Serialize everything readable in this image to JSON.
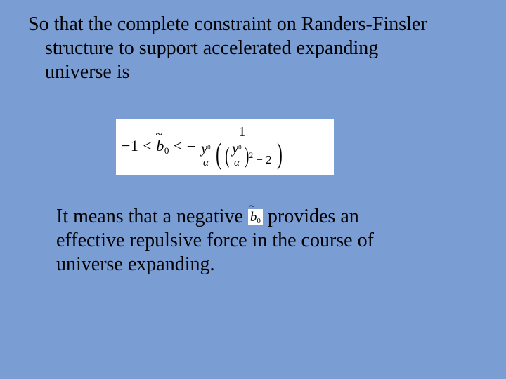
{
  "background_color": "#7a9dd3",
  "text_color": "#000000",
  "formula_bg": "#ffffff",
  "font_family": "Times New Roman",
  "body_fontsize_pt": 21,
  "para1": {
    "line1": "So that the complete constraint on Randers-Finsler",
    "line2": "structure to support accelerated expanding",
    "line3": "universe is"
  },
  "formula": {
    "lower_bound": "−1",
    "lt1": "<",
    "symbol_base": "b",
    "symbol_tilde": "~",
    "symbol_sub": "0",
    "lt2": "<",
    "rhs_leading_minus": "−",
    "numerator": "1",
    "ratio_num": "y",
    "ratio_num_sup": "0",
    "ratio_den": "α",
    "square_exp": "2",
    "tail_minus": "−",
    "tail_const": "2"
  },
  "para2": {
    "pre": "It means that a negative ",
    "post_line1": " provides an",
    "line2": "effective repulsive force in the course of",
    "line3": "universe expanding."
  }
}
